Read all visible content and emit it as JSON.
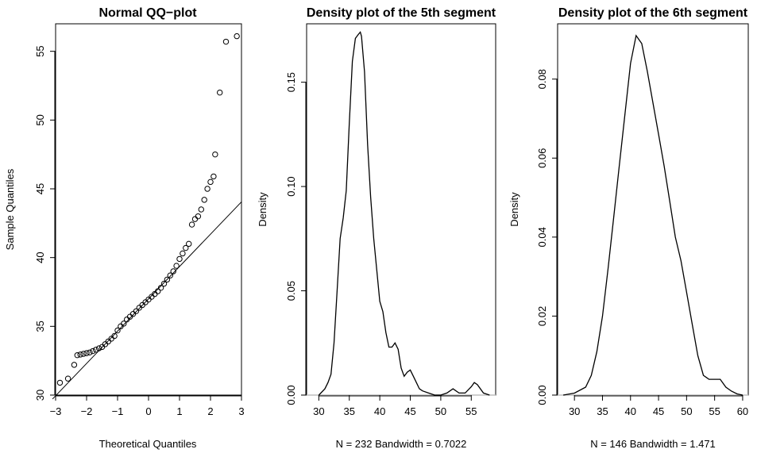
{
  "chart_data": [
    {
      "type": "scatter",
      "title": "Normal QQ−plot",
      "xlabel": "Theoretical Quantiles",
      "ylabel": "Sample Quantiles",
      "xlim": [
        -3,
        3
      ],
      "ylim": [
        30,
        57
      ],
      "xticks": [
        -3,
        -2,
        -1,
        0,
        1,
        2,
        3
      ],
      "xtick_labels": [
        "−3",
        "−2",
        "−1",
        "0",
        "1",
        "2",
        "3"
      ],
      "yticks": [
        30,
        35,
        40,
        45,
        50,
        55
      ],
      "ytick_labels": [
        "30",
        "35",
        "40",
        "45",
        "50",
        "55"
      ],
      "reference_line": {
        "intercept": 37.0,
        "slope": 2.35
      },
      "points": [
        [
          -2.86,
          30.9
        ],
        [
          -2.6,
          31.2
        ],
        [
          -2.4,
          32.2
        ],
        [
          -2.3,
          32.9
        ],
        [
          -2.2,
          32.95
        ],
        [
          -2.1,
          33.0
        ],
        [
          -2.0,
          33.05
        ],
        [
          -1.9,
          33.1
        ],
        [
          -1.8,
          33.2
        ],
        [
          -1.7,
          33.3
        ],
        [
          -1.6,
          33.4
        ],
        [
          -1.5,
          33.5
        ],
        [
          -1.4,
          33.7
        ],
        [
          -1.3,
          33.9
        ],
        [
          -1.2,
          34.1
        ],
        [
          -1.1,
          34.3
        ],
        [
          -1.0,
          34.7
        ],
        [
          -0.9,
          35.0
        ],
        [
          -0.8,
          35.2
        ],
        [
          -0.7,
          35.5
        ],
        [
          -0.6,
          35.7
        ],
        [
          -0.5,
          35.9
        ],
        [
          -0.4,
          36.1
        ],
        [
          -0.3,
          36.35
        ],
        [
          -0.2,
          36.55
        ],
        [
          -0.1,
          36.75
        ],
        [
          0.0,
          36.95
        ],
        [
          0.1,
          37.15
        ],
        [
          0.2,
          37.35
        ],
        [
          0.3,
          37.55
        ],
        [
          0.4,
          37.8
        ],
        [
          0.5,
          38.1
        ],
        [
          0.6,
          38.4
        ],
        [
          0.7,
          38.7
        ],
        [
          0.8,
          39.0
        ],
        [
          0.9,
          39.4
        ],
        [
          1.0,
          39.9
        ],
        [
          1.1,
          40.3
        ],
        [
          1.2,
          40.7
        ],
        [
          1.3,
          41.0
        ],
        [
          1.4,
          42.4
        ],
        [
          1.5,
          42.8
        ],
        [
          1.6,
          43.0
        ],
        [
          1.7,
          43.5
        ],
        [
          1.8,
          44.2
        ],
        [
          1.9,
          45.0
        ],
        [
          2.0,
          45.5
        ],
        [
          2.1,
          45.9
        ],
        [
          2.15,
          47.5
        ],
        [
          2.3,
          52.0
        ],
        [
          2.5,
          55.7
        ],
        [
          2.85,
          56.1
        ]
      ]
    },
    {
      "type": "line",
      "title": "Density plot of the 5th segment",
      "xlabel": "N = 232   Bandwidth = 0.7022",
      "ylabel": "Density",
      "xlim": [
        28,
        59
      ],
      "ylim": [
        0,
        0.178
      ],
      "xticks": [
        30,
        35,
        40,
        45,
        50,
        55
      ],
      "xtick_labels": [
        "30",
        "35",
        "40",
        "45",
        "50",
        "55"
      ],
      "yticks": [
        0,
        0.05,
        0.1,
        0.15
      ],
      "ytick_labels": [
        "0.00",
        "0.05",
        "0.10",
        "0.15"
      ],
      "x": [
        30,
        31,
        31.5,
        32,
        32.5,
        33,
        33.5,
        34,
        34.5,
        35,
        35.5,
        36,
        36.5,
        36.8,
        37,
        37.5,
        38,
        38.5,
        39,
        39.5,
        40,
        40.5,
        41,
        41.5,
        42,
        42.5,
        43,
        43.5,
        44,
        44.5,
        45,
        45.5,
        46,
        46.5,
        47,
        48,
        49,
        50,
        51,
        52,
        53,
        54,
        55,
        55.5,
        56,
        57,
        58
      ],
      "values": [
        0,
        0.003,
        0.006,
        0.01,
        0.025,
        0.05,
        0.075,
        0.085,
        0.098,
        0.13,
        0.16,
        0.171,
        0.173,
        0.174,
        0.172,
        0.155,
        0.12,
        0.095,
        0.075,
        0.06,
        0.045,
        0.04,
        0.03,
        0.023,
        0.023,
        0.025,
        0.022,
        0.013,
        0.009,
        0.011,
        0.012,
        0.009,
        0.006,
        0.003,
        0.002,
        0.001,
        0,
        0,
        0.001,
        0.003,
        0.001,
        0.001,
        0.004,
        0.006,
        0.005,
        0.001,
        0
      ]
    },
    {
      "type": "line",
      "title": "Density plot of the 6th segment",
      "xlabel": "N = 146   Bandwidth = 1.471",
      "ylabel": "Density",
      "xlim": [
        27,
        61
      ],
      "ylim": [
        0,
        0.094
      ],
      "xticks": [
        30,
        35,
        40,
        45,
        50,
        55,
        60
      ],
      "xtick_labels": [
        "30",
        "35",
        "40",
        "45",
        "50",
        "55",
        "60"
      ],
      "yticks": [
        0,
        0.02,
        0.04,
        0.06,
        0.08
      ],
      "ytick_labels": [
        "0.00",
        "0.02",
        "0.04",
        "0.06",
        "0.08"
      ],
      "x": [
        28,
        30,
        32,
        33,
        34,
        35,
        36,
        37,
        38,
        39,
        40,
        41,
        42,
        43,
        44,
        45,
        46,
        47,
        48,
        49,
        50,
        51,
        52,
        53,
        54,
        55,
        56,
        57,
        58,
        59,
        60
      ],
      "values": [
        0,
        0.0005,
        0.002,
        0.005,
        0.011,
        0.02,
        0.032,
        0.045,
        0.058,
        0.071,
        0.084,
        0.091,
        0.089,
        0.082,
        0.074,
        0.066,
        0.058,
        0.049,
        0.04,
        0.034,
        0.026,
        0.018,
        0.01,
        0.005,
        0.004,
        0.004,
        0.004,
        0.002,
        0.001,
        0.0003,
        0
      ]
    }
  ]
}
